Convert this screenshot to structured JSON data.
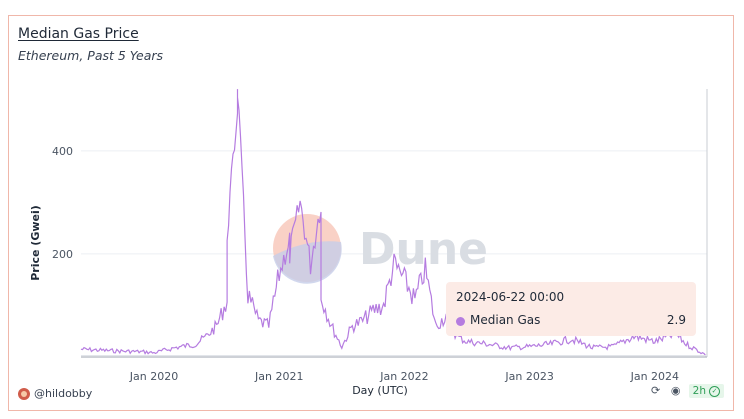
{
  "card": {
    "title": "Median Gas Price",
    "subtitle": "Ethereum, Past 5 Years"
  },
  "watermark": {
    "text": "Dune"
  },
  "tooltip": {
    "date": "2024-06-22 00:00",
    "series": "Median Gas",
    "value": "2.9",
    "color": "#b57ce0"
  },
  "footer": {
    "user": "@hildobby",
    "refresh": "2h",
    "icons": [
      "refresh-icon",
      "camera-icon",
      "check-icon"
    ]
  },
  "chart_data": {
    "type": "line",
    "xlabel": "Day (UTC)",
    "ylabel": "Price (Gwei)",
    "ylim": [
      0,
      520
    ],
    "yticks": [
      200,
      400
    ],
    "xticks": [
      "Jan 2020",
      "Jan 2021",
      "Jan 2022",
      "Jan 2023",
      "Jan 2024"
    ],
    "x_range": [
      "2019-06-22",
      "2024-06-22"
    ],
    "grid": true,
    "series": [
      {
        "name": "Median Gas",
        "color": "#b57ce0",
        "x": [
          "2019-06",
          "2019-09",
          "2019-12",
          "2020-01",
          "2020-03",
          "2020-05",
          "2020-06",
          "2020-07",
          "2020-08",
          "2020-08",
          "2020-09",
          "2020-09",
          "2020-10",
          "2020-11",
          "2020-12",
          "2021-01",
          "2021-02",
          "2021-02",
          "2021-03",
          "2021-04",
          "2021-05",
          "2021-05",
          "2021-06",
          "2021-07",
          "2021-08",
          "2021-09",
          "2021-10",
          "2021-11",
          "2021-12",
          "2022-01",
          "2022-02",
          "2022-03",
          "2022-04",
          "2022-05",
          "2022-06",
          "2022-07",
          "2022-09",
          "2022-11",
          "2023-01",
          "2023-03",
          "2023-05",
          "2023-07",
          "2023-09",
          "2023-11",
          "2024-01",
          "2024-03",
          "2024-04",
          "2024-06"
        ],
        "values": [
          15,
          12,
          10,
          8,
          18,
          25,
          40,
          60,
          110,
          240,
          480,
          520,
          120,
          70,
          60,
          160,
          230,
          200,
          300,
          180,
          300,
          120,
          60,
          20,
          60,
          70,
          90,
          100,
          180,
          150,
          110,
          170,
          60,
          80,
          40,
          30,
          25,
          18,
          20,
          25,
          35,
          18,
          20,
          40,
          30,
          45,
          25,
          3
        ]
      }
    ]
  }
}
